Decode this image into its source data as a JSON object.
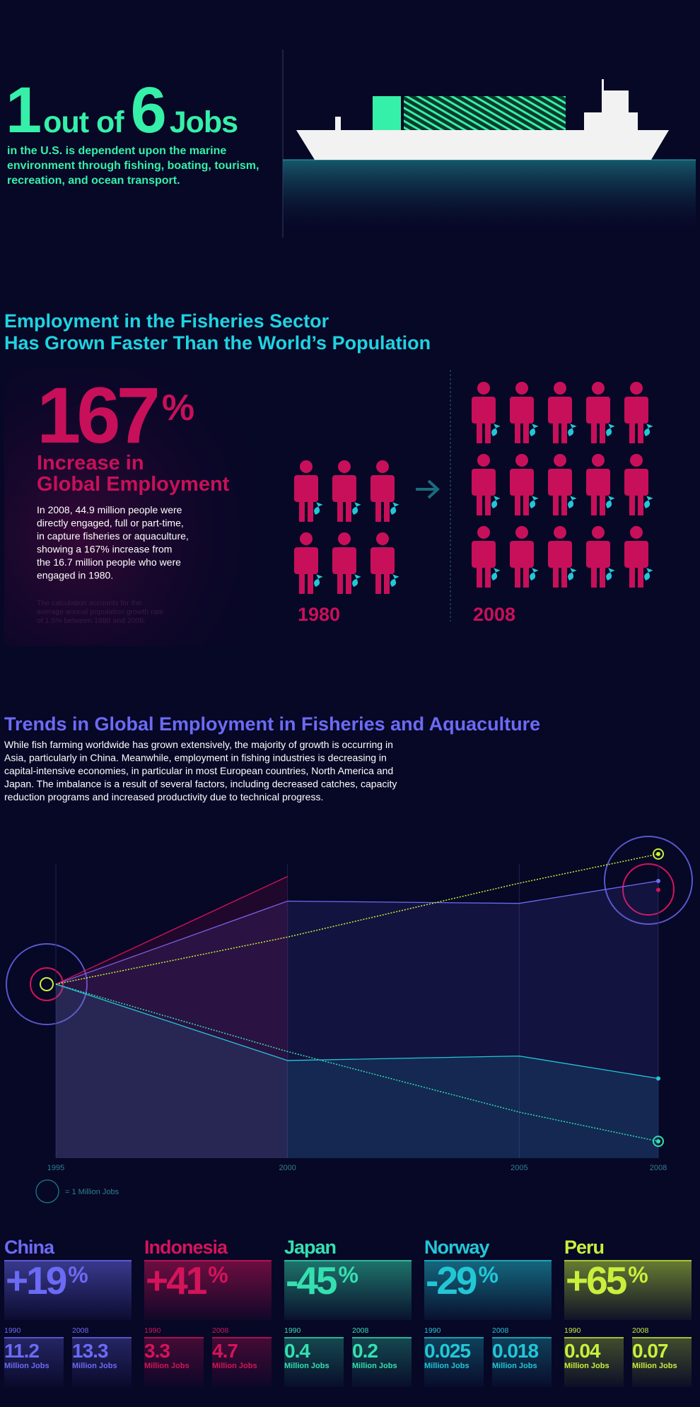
{
  "hero": {
    "big1": "1",
    "text1": "out of",
    "big2": "6",
    "text2": "Jobs",
    "description": [
      "in the U.S. is dependent upon the marine",
      "environment through fishing, boating, tourism,",
      "recreation, and ocean transport."
    ]
  },
  "employment": {
    "title": [
      "Employment in the Fisheries Sector",
      "Has Grown Faster Than the World’s Population"
    ],
    "stat": "167",
    "stat_unit": "%",
    "stat_label": [
      "Increase in",
      "Global Employment"
    ],
    "body": [
      "In 2008, 44.9 million people were",
      "directly engaged, full or part-time,",
      "in capture fisheries or aquaculture,",
      "showing a 167% increase from",
      "the 16.7 million people who were",
      "engaged in 1980."
    ],
    "note": [
      "The calculation accounts for the",
      "average annual population growth rate",
      "of 1.5% between 1980 and 2008."
    ],
    "year_1980": "1980",
    "year_2008": "2008",
    "icons_1980": 6,
    "icons_2008": 15
  },
  "trends": {
    "title": "Trends in Global Employment in Fisheries and Aquaculture",
    "body": [
      "While fish farming worldwide has grown extensively, the majority of growth is occurring in",
      "Asia, particularly in China. Meanwhile, employment in fishing industries is decreasing in",
      "capital-intensive economies, in particular in most European countries, North America and",
      "Japan. The imbalance is a result of several factors, including decreased catches, capacity",
      "reduction programs and increased productivity due to technical progress."
    ]
  },
  "chart_data": {
    "type": "line",
    "x": [
      1995,
      2000,
      2005,
      2008
    ],
    "xlim": [
      1995,
      2008
    ],
    "xticks": [
      1995,
      2000,
      2005,
      2008
    ],
    "ylim": [
      -80,
      60
    ],
    "grid": true,
    "series": [
      {
        "color": "#6b6bf5",
        "dashed": false,
        "fill": true,
        "values": [
          0,
          37,
          36,
          46
        ]
      },
      {
        "color": "#d4145a",
        "dashed": false,
        "fill": true,
        "values": [
          0,
          48,
          null,
          42
        ]
      },
      {
        "color": "#35e0b0",
        "dashed": true,
        "fill": false,
        "values": [
          0,
          -30,
          -57,
          -70
        ]
      },
      {
        "color": "#22c7d6",
        "dashed": false,
        "fill": true,
        "values": [
          0,
          -34,
          -32,
          -42
        ]
      },
      {
        "color": "#c8f03c",
        "dashed": true,
        "fill": false,
        "values": [
          0,
          21,
          45,
          58
        ]
      }
    ],
    "legend_label": "= 1 Million Jobs"
  },
  "countries": [
    {
      "name": "China",
      "color": "#6b6bf5",
      "change": "+19",
      "unit": "%",
      "year1": "1990",
      "value1": "11.2",
      "year2": "2008",
      "value2": "13.3",
      "jobs_label": "Million Jobs"
    },
    {
      "name": "Indonesia",
      "color": "#d4145a",
      "change": "+41",
      "unit": "%",
      "year1": "1990",
      "value1": "3.3",
      "year2": "2008",
      "value2": "4.7",
      "jobs_label": "Million Jobs"
    },
    {
      "name": "Japan",
      "color": "#35e0b0",
      "change": "-45",
      "unit": "%",
      "year1": "1990",
      "value1": "0.4",
      "year2": "2008",
      "value2": "0.2",
      "jobs_label": "Million Jobs"
    },
    {
      "name": "Norway",
      "color": "#22c7d6",
      "change": "-29",
      "unit": "%",
      "year1": "1990",
      "value1": "0.025",
      "year2": "2008",
      "value2": "0.018",
      "jobs_label": "Million Jobs"
    },
    {
      "name": "Peru",
      "color": "#c8f03c",
      "change": "+65",
      "unit": "%",
      "year1": "1990",
      "value1": "0.04",
      "year2": "2008",
      "value2": "0.07",
      "jobs_label": "Million Jobs"
    }
  ]
}
